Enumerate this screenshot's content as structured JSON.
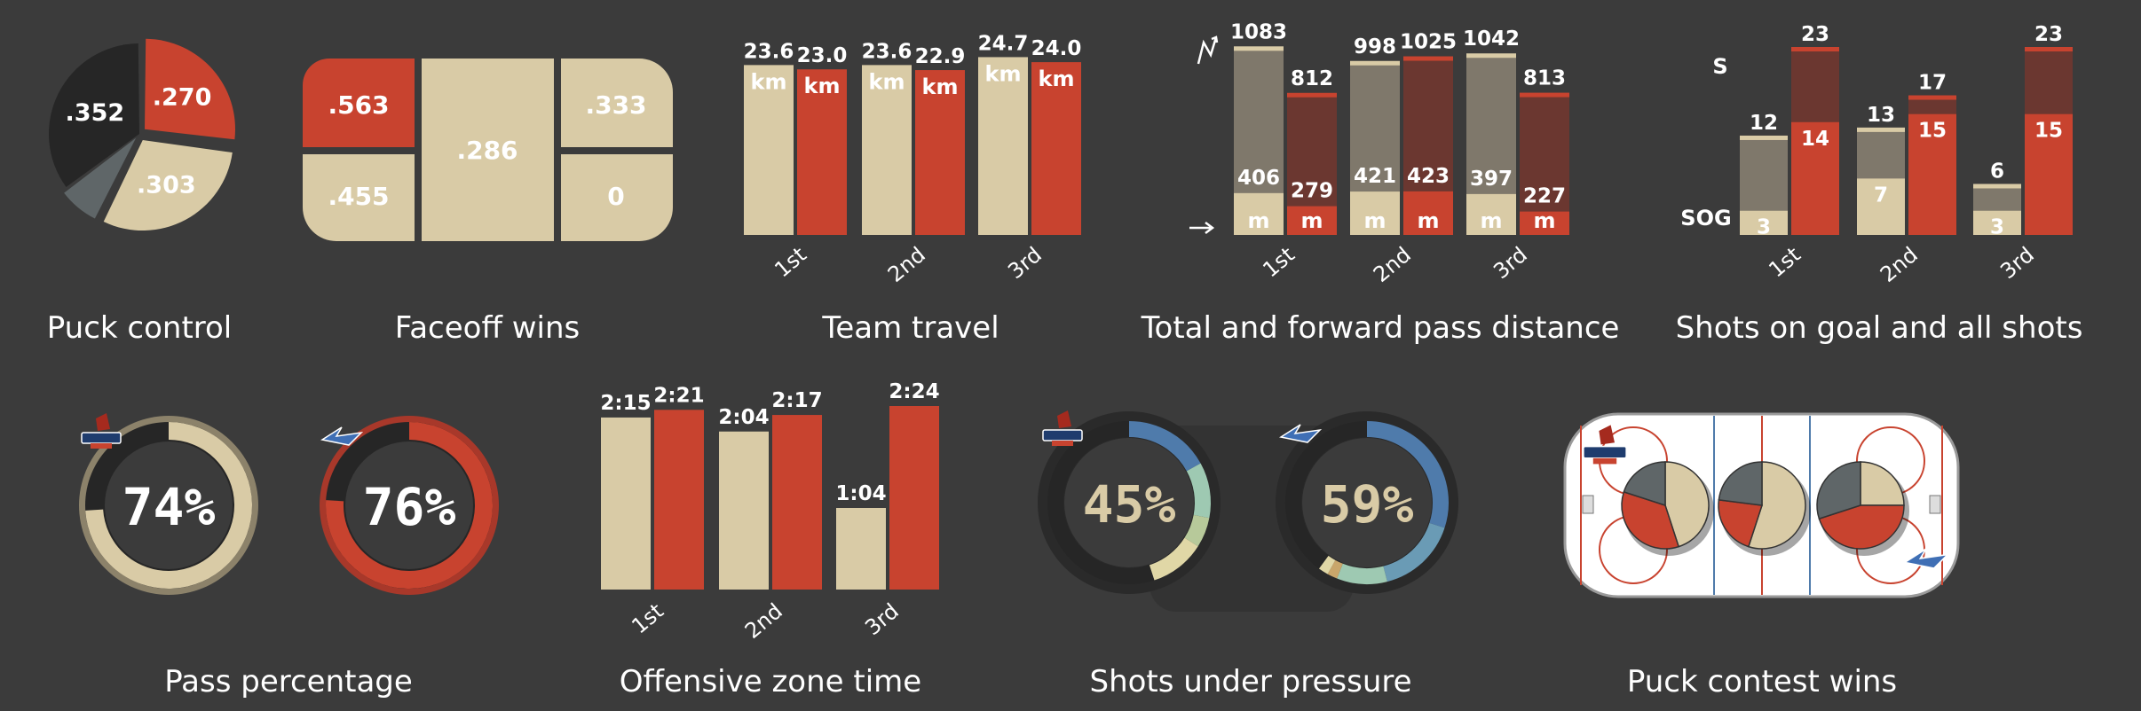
{
  "colors": {
    "background": "#3b3b3b",
    "home": "#d9cba6",
    "away": "#c8432f",
    "dark": "#262626",
    "grey": "#5f6668",
    "home_dim": "#7f786b",
    "away_dim": "#6b3730",
    "blue": "#4f7bab",
    "teal": "#9ec9b2",
    "yellow": "#e0d7a6"
  },
  "chart_data": [
    {
      "id": "puck_control",
      "type": "pie",
      "title": "Puck control",
      "slices": [
        {
          "label": ".270",
          "value": 0.27,
          "team": "away"
        },
        {
          "label": ".303",
          "value": 0.303,
          "team": "home"
        },
        {
          "label": "",
          "value": 0.075,
          "team": "neutral"
        },
        {
          "label": ".352",
          "value": 0.352,
          "team": "unassigned"
        }
      ]
    },
    {
      "id": "faceoff_wins",
      "type": "table",
      "title": "Faceoff wins",
      "cells": [
        ".563",
        ".455",
        ".286",
        ".333",
        "0"
      ]
    },
    {
      "id": "team_travel",
      "type": "bar",
      "title": "Team travel",
      "categories": [
        "1st",
        "2nd",
        "3rd"
      ],
      "unit": "km",
      "ylim": [
        0,
        25
      ],
      "series": [
        {
          "team": "home",
          "values": [
            23.6,
            23.6,
            24.7
          ],
          "labels": [
            "23.6",
            "23.6",
            "24.7"
          ]
        },
        {
          "team": "away",
          "values": [
            23.0,
            22.9,
            24.0
          ],
          "labels": [
            "23.0",
            "22.9",
            "24.0"
          ]
        }
      ]
    },
    {
      "id": "pass_distance",
      "type": "bar",
      "title": "Total and forward pass distance",
      "categories": [
        "1st",
        "2nd",
        "3rd"
      ],
      "unit": "m",
      "ylim": [
        0,
        1100
      ],
      "series": [
        {
          "team": "home",
          "total": [
            1083,
            998,
            1042
          ],
          "forward": [
            406,
            421,
            397
          ]
        },
        {
          "team": "away",
          "total": [
            812,
            1025,
            813
          ],
          "forward": [
            279,
            423,
            227
          ]
        }
      ]
    },
    {
      "id": "shots",
      "type": "bar",
      "title": "Shots on goal and all shots",
      "categories": [
        "1st",
        "2nd",
        "3rd"
      ],
      "row_labels": {
        "shots": "S",
        "sog": "SOG"
      },
      "ylim": [
        0,
        23
      ],
      "series": [
        {
          "team": "home",
          "shots": [
            12,
            13,
            6
          ],
          "sog": [
            3,
            7,
            3
          ]
        },
        {
          "team": "away",
          "shots": [
            23,
            17,
            23
          ],
          "sog": [
            14,
            15,
            15
          ]
        }
      ]
    },
    {
      "id": "pass_pct",
      "type": "pie",
      "title": "Pass percentage",
      "rings": [
        {
          "team": "home",
          "value": 0.74,
          "label": "74%"
        },
        {
          "team": "away",
          "value": 0.76,
          "label": "76%"
        }
      ]
    },
    {
      "id": "oz_time",
      "type": "bar",
      "title": "Offensive zone time",
      "categories": [
        "1st",
        "2nd",
        "3rd"
      ],
      "ylim": [
        0,
        144
      ],
      "series": [
        {
          "team": "home",
          "values": [
            135,
            124,
            64
          ],
          "labels": [
            "2:15",
            "2:04",
            "1:04"
          ]
        },
        {
          "team": "away",
          "values": [
            141,
            137,
            144
          ],
          "labels": [
            "2:21",
            "2:17",
            "2:24"
          ]
        }
      ]
    },
    {
      "id": "pressure",
      "type": "pie",
      "title": "Shots under pressure",
      "rings": [
        {
          "team": "home",
          "value": 0.45,
          "label": "45%",
          "segments": [
            0.17,
            0.11,
            0.06,
            0.11,
            0.55
          ]
        },
        {
          "team": "away",
          "value": 0.59,
          "label": "59%",
          "segments": [
            0.3,
            0.16,
            0.1,
            0.02,
            0.02,
            0.4
          ]
        }
      ]
    },
    {
      "id": "puck_contest",
      "type": "pie",
      "title": "Puck contest wins",
      "pies": [
        {
          "home": 0.45,
          "away": 0.35,
          "grey": 0.2
        },
        {
          "home": 0.55,
          "away": 0.22,
          "grey": 0.23
        },
        {
          "home": 0.25,
          "away": 0.45,
          "grey": 0.3
        }
      ]
    }
  ],
  "logos": {
    "home_text": "ROOSTERS",
    "away_text": "WILD WINGS"
  }
}
